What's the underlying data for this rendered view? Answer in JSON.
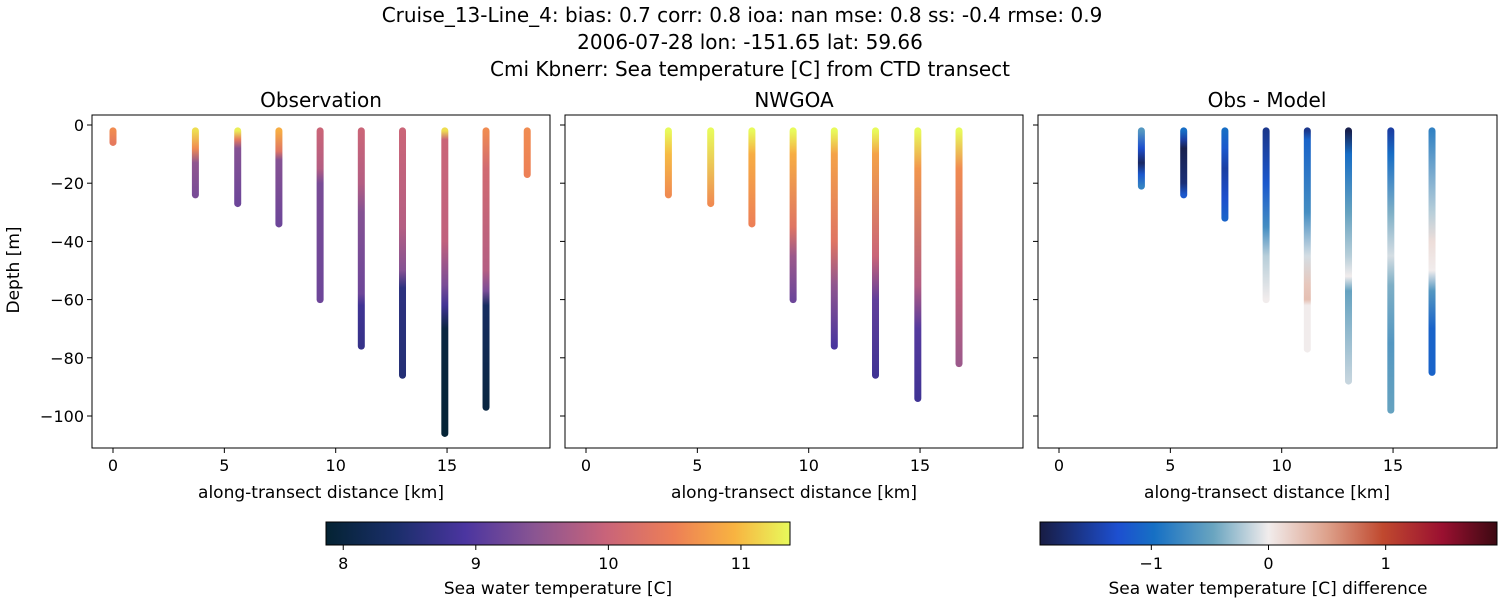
{
  "title_lines": [
    "Cruise_13-Line_4: bias: 0.7  corr: 0.8  ioa: nan  mse: 0.8  ss: -0.4  rmse: 0.9",
    "2006-07-28 lon: -151.65 lat: 59.66",
    "Cmi Kbnerr: Sea temperature [C] from CTD transect"
  ],
  "chart_data": [
    {
      "type": "scatter",
      "title": "Observation",
      "xlabel": "along-transect distance [km]",
      "ylabel": "Depth [m]",
      "xlim": [
        -1,
        19.5
      ],
      "ylim": [
        -111,
        3.5
      ],
      "xticks": [
        0,
        5,
        10,
        15
      ],
      "yticks": [
        0,
        -20,
        -40,
        -60,
        -80,
        -100
      ],
      "colormap": "thermal",
      "clim": [
        7.87,
        11.37
      ],
      "casts": [
        {
          "x": 0,
          "max_depth": 6,
          "profile": [
            [
              0,
              10.6
            ],
            [
              6,
              10.4
            ]
          ]
        },
        {
          "x": 3.7,
          "max_depth": 24,
          "profile": [
            [
              2,
              11.2
            ],
            [
              8,
              10.6
            ],
            [
              13,
              9.5
            ],
            [
              24,
              9.3
            ]
          ]
        },
        {
          "x": 5.6,
          "max_depth": 27,
          "profile": [
            [
              2,
              11.3
            ],
            [
              5,
              10.4
            ],
            [
              8,
              9.4
            ],
            [
              27,
              9.2
            ]
          ]
        },
        {
          "x": 7.45,
          "max_depth": 34,
          "profile": [
            [
              2,
              10.9
            ],
            [
              9,
              10.3
            ],
            [
              12,
              9.4
            ],
            [
              34,
              9.2
            ]
          ]
        },
        {
          "x": 9.3,
          "max_depth": 60,
          "profile": [
            [
              2,
              10.0
            ],
            [
              15,
              9.8
            ],
            [
              20,
              9.3
            ],
            [
              60,
              9.2
            ]
          ]
        },
        {
          "x": 11.15,
          "max_depth": 76,
          "profile": [
            [
              2,
              10.0
            ],
            [
              20,
              9.8
            ],
            [
              30,
              9.4
            ],
            [
              58,
              9.2
            ],
            [
              62,
              8.8
            ],
            [
              76,
              8.7
            ]
          ]
        },
        {
          "x": 13.0,
          "max_depth": 86,
          "profile": [
            [
              2,
              10.0
            ],
            [
              35,
              9.8
            ],
            [
              50,
              9.4
            ],
            [
              56,
              8.6
            ],
            [
              86,
              8.5
            ]
          ]
        },
        {
          "x": 14.9,
          "max_depth": 106,
          "profile": [
            [
              2,
              11.2
            ],
            [
              5,
              10.0
            ],
            [
              40,
              9.9
            ],
            [
              55,
              9.3
            ],
            [
              62,
              8.8
            ],
            [
              70,
              8.0
            ],
            [
              106,
              7.9
            ]
          ]
        },
        {
          "x": 16.75,
          "max_depth": 97,
          "profile": [
            [
              2,
              10.6
            ],
            [
              15,
              10.1
            ],
            [
              50,
              9.8
            ],
            [
              57,
              9.3
            ],
            [
              62,
              8.3
            ],
            [
              97,
              8.0
            ]
          ]
        },
        {
          "x": 18.6,
          "max_depth": 17,
          "profile": [
            [
              2,
              10.6
            ],
            [
              17,
              10.5
            ]
          ]
        }
      ]
    },
    {
      "type": "scatter",
      "title": "NWGOA",
      "xlabel": "along-transect distance [km]",
      "xlim": [
        -1,
        19.5
      ],
      "ylim": [
        -111,
        3.5
      ],
      "xticks": [
        0,
        5,
        10,
        15
      ],
      "colormap": "thermal",
      "clim": [
        7.87,
        11.37
      ],
      "casts": [
        {
          "x": 3.7,
          "max_depth": 24,
          "profile": [
            [
              2,
              11.5
            ],
            [
              10,
              11.0
            ],
            [
              24,
              10.6
            ]
          ]
        },
        {
          "x": 5.6,
          "max_depth": 27,
          "profile": [
            [
              2,
              11.5
            ],
            [
              27,
              10.6
            ]
          ]
        },
        {
          "x": 7.45,
          "max_depth": 34,
          "profile": [
            [
              2,
              11.5
            ],
            [
              10,
              10.9
            ],
            [
              34,
              10.5
            ]
          ]
        },
        {
          "x": 9.3,
          "max_depth": 60,
          "profile": [
            [
              2,
              11.5
            ],
            [
              10,
              10.9
            ],
            [
              35,
              10.3
            ],
            [
              45,
              9.6
            ],
            [
              60,
              9.2
            ]
          ]
        },
        {
          "x": 11.15,
          "max_depth": 76,
          "profile": [
            [
              2,
              11.5
            ],
            [
              10,
              10.8
            ],
            [
              40,
              10.3
            ],
            [
              55,
              9.5
            ],
            [
              76,
              8.9
            ]
          ]
        },
        {
          "x": 13.0,
          "max_depth": 86,
          "profile": [
            [
              2,
              11.5
            ],
            [
              10,
              10.8
            ],
            [
              45,
              10.0
            ],
            [
              60,
              9.1
            ],
            [
              86,
              8.8
            ]
          ]
        },
        {
          "x": 14.9,
          "max_depth": 94,
          "profile": [
            [
              2,
              11.5
            ],
            [
              15,
              10.7
            ],
            [
              55,
              9.8
            ],
            [
              70,
              9.0
            ],
            [
              94,
              8.8
            ]
          ]
        },
        {
          "x": 16.75,
          "max_depth": 82,
          "profile": [
            [
              2,
              11.4
            ],
            [
              15,
              10.6
            ],
            [
              50,
              10.0
            ],
            [
              82,
              9.6
            ]
          ]
        }
      ]
    },
    {
      "type": "scatter",
      "title": "Obs - Model",
      "xlabel": "along-transect distance [km]",
      "xlim": [
        -1,
        19.5
      ],
      "ylim": [
        -111,
        3.5
      ],
      "xticks": [
        0,
        5,
        10,
        15
      ],
      "colormap": "balance",
      "clim": [
        -1.95,
        1.95
      ],
      "casts": [
        {
          "x": 3.7,
          "max_depth": 21,
          "profile": [
            [
              1,
              -0.6
            ],
            [
              8,
              -1.3
            ],
            [
              13,
              -1.8
            ],
            [
              17,
              -1.2
            ],
            [
              21,
              -0.8
            ]
          ]
        },
        {
          "x": 5.6,
          "max_depth": 24,
          "profile": [
            [
              1,
              -1.0
            ],
            [
              5,
              -1.5
            ],
            [
              8,
              -1.9
            ],
            [
              20,
              -1.7
            ],
            [
              24,
              -1.2
            ]
          ]
        },
        {
          "x": 7.45,
          "max_depth": 32,
          "profile": [
            [
              1,
              -1.0
            ],
            [
              8,
              -1.2
            ],
            [
              15,
              -1.5
            ],
            [
              25,
              -1.3
            ],
            [
              32,
              -1.1
            ]
          ]
        },
        {
          "x": 9.3,
          "max_depth": 60,
          "profile": [
            [
              1,
              -1.6
            ],
            [
              20,
              -1.2
            ],
            [
              35,
              -0.7
            ],
            [
              45,
              -0.2
            ],
            [
              60,
              0
            ]
          ]
        },
        {
          "x": 11.15,
          "max_depth": 77,
          "profile": [
            [
              1,
              -1.6
            ],
            [
              5,
              -1.1
            ],
            [
              30,
              -0.7
            ],
            [
              45,
              -0.1
            ],
            [
              55,
              0.25
            ],
            [
              60,
              0.3
            ],
            [
              62,
              0
            ],
            [
              77,
              0
            ]
          ]
        },
        {
          "x": 13.0,
          "max_depth": 88,
          "profile": [
            [
              1,
              -1.9
            ],
            [
              10,
              -1.0
            ],
            [
              30,
              -0.5
            ],
            [
              45,
              -0.2
            ],
            [
              52,
              0
            ],
            [
              57,
              -0.5
            ],
            [
              88,
              -0.15
            ]
          ]
        },
        {
          "x": 14.9,
          "max_depth": 98,
          "profile": [
            [
              1,
              -1.5
            ],
            [
              10,
              -1.0
            ],
            [
              30,
              -0.4
            ],
            [
              45,
              -0.1
            ],
            [
              55,
              -0.4
            ],
            [
              75,
              -0.6
            ],
            [
              98,
              -0.5
            ]
          ]
        },
        {
          "x": 16.75,
          "max_depth": 85,
          "profile": [
            [
              1,
              -0.8
            ],
            [
              30,
              -0.2
            ],
            [
              40,
              0.1
            ],
            [
              50,
              0
            ],
            [
              57,
              -0.6
            ],
            [
              70,
              -1.1
            ],
            [
              85,
              -1.1
            ]
          ]
        }
      ]
    }
  ],
  "colorbars": [
    {
      "label": "Sea water temperature [C]",
      "ticks": [
        8,
        9,
        10,
        11
      ],
      "range": [
        7.87,
        11.37
      ],
      "colormap": "thermal"
    },
    {
      "label": "Sea water temperature [C] difference",
      "ticks": [
        -1,
        0,
        1
      ],
      "tick_labels": [
        "−1",
        "0",
        "1"
      ],
      "range": [
        -1.95,
        1.95
      ],
      "colormap": "balance"
    }
  ],
  "colormaps": {
    "thermal": [
      [
        0,
        "#042333"
      ],
      [
        0.15,
        "#1a2e6a"
      ],
      [
        0.3,
        "#4b35a0"
      ],
      [
        0.45,
        "#8a5592"
      ],
      [
        0.6,
        "#c8637a"
      ],
      [
        0.75,
        "#ed7f56"
      ],
      [
        0.88,
        "#f8b341"
      ],
      [
        1,
        "#e8fa5b"
      ]
    ],
    "balance": [
      [
        0,
        "#181c43"
      ],
      [
        0.17,
        "#1d4fd0"
      ],
      [
        0.25,
        "#1670c4"
      ],
      [
        0.38,
        "#6aa5c0"
      ],
      [
        0.5,
        "#f1ecec"
      ],
      [
        0.63,
        "#dda08a"
      ],
      [
        0.75,
        "#c0492f"
      ],
      [
        0.88,
        "#9a1030"
      ],
      [
        1,
        "#3c0912"
      ]
    ]
  }
}
